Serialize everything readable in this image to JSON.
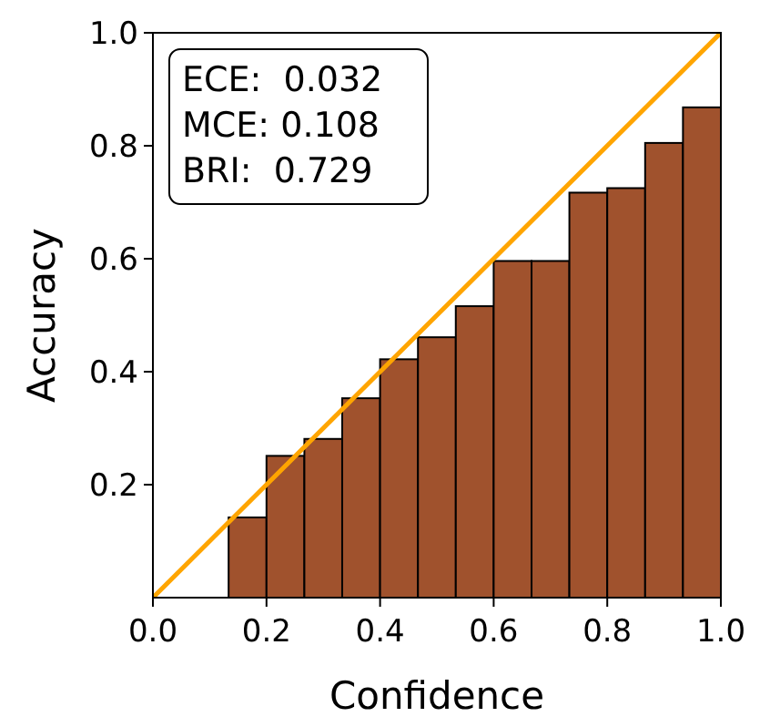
{
  "chart_data": {
    "type": "histogram",
    "xlabel": "Confidence",
    "ylabel": "Accuracy",
    "bins": [
      0,
      0.0667,
      0.1333,
      0.2,
      0.2667,
      0.3333,
      0.4,
      0.4667,
      0.5333,
      0.6,
      0.6667,
      0.7333,
      0.8,
      0.8667,
      0.9333,
      1
    ],
    "values": [
      0,
      0,
      0.142,
      0.251,
      0.281,
      0.353,
      0.422,
      0.461,
      0.516,
      0.596,
      0.596,
      0.717,
      0.725,
      0.805,
      0.868
    ],
    "color": "#a0522d",
    "series": [
      {
        "type": "line",
        "x": [
          0,
          1
        ],
        "values": [
          0,
          1
        ],
        "color": "#ffa500"
      }
    ],
    "xlim": [
      0,
      1
    ],
    "ylim": [
      0,
      1
    ],
    "xticks": [
      {
        "value": 0,
        "label": "0.0"
      },
      0.2,
      0.4,
      0.6,
      0.8,
      {
        "value": 1,
        "label": "1.0"
      }
    ],
    "yticks": [
      0.2,
      0.4,
      0.6,
      0.8,
      {
        "value": 1,
        "label": "1.0"
      }
    ],
    "annotations": [
      "ECE:  0.032\nMCE: 0.108\nBRI:  0.729"
    ],
    "grid": false
  }
}
